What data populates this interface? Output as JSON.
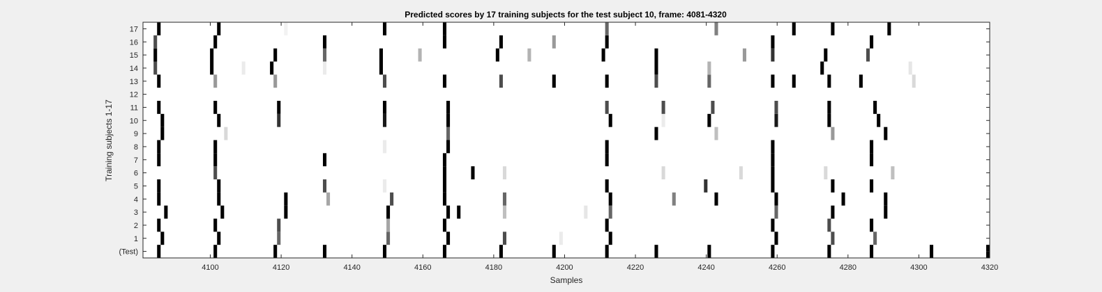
{
  "chart_data": {
    "type": "heatmap",
    "title": "Predicted scores by 17 training subjects for the test subject 10, frame: 4081-4320",
    "xlabel": "Samples",
    "ylabel": "Training subjects 1-17",
    "xlim": [
      4081,
      4320
    ],
    "x_ticks": [
      "4100",
      "4120",
      "4140",
      "4160",
      "4180",
      "4200",
      "4220",
      "4240",
      "4260",
      "4280",
      "4300",
      "4320"
    ],
    "y_tick_labels": [
      "(Test)",
      "1",
      "2",
      "3",
      "4",
      "5",
      "6",
      "7",
      "8",
      "9",
      "10",
      "11",
      "12",
      "13",
      "14",
      "15",
      "16",
      "17"
    ],
    "colormap": "gray (0 = white, 1 = black)",
    "background_color": "#ffffff",
    "figure_color": "#f0f0f0",
    "rows": [
      {
        "label": "(Test)",
        "marks": [
          [
            4085,
            1
          ],
          [
            4101,
            1
          ],
          [
            4118,
            1
          ],
          [
            4132,
            1
          ],
          [
            4149,
            1
          ],
          [
            4166,
            1
          ],
          [
            4182,
            1
          ],
          [
            4197,
            1
          ],
          [
            4212,
            1
          ],
          [
            4226,
            1
          ],
          [
            4241,
            1
          ],
          [
            4259,
            1
          ],
          [
            4275,
            1
          ],
          [
            4287,
            1
          ],
          [
            4304,
            1
          ],
          [
            4320,
            1
          ]
        ]
      },
      {
        "label": "1",
        "marks": [
          [
            4086,
            1
          ],
          [
            4102,
            1
          ],
          [
            4119,
            0.6
          ],
          [
            4150,
            0.6
          ],
          [
            4167,
            1
          ],
          [
            4183,
            0.7
          ],
          [
            4199,
            0.08
          ],
          [
            4213,
            1
          ],
          [
            4260,
            1
          ],
          [
            4276,
            0.7
          ],
          [
            4288,
            0.6
          ]
        ]
      },
      {
        "label": "2",
        "marks": [
          [
            4085,
            1
          ],
          [
            4101,
            1
          ],
          [
            4119,
            0.7
          ],
          [
            4150,
            0.35
          ],
          [
            4166,
            1
          ],
          [
            4212,
            1
          ],
          [
            4259,
            1
          ],
          [
            4275,
            0.7
          ],
          [
            4287,
            1
          ]
        ]
      },
      {
        "label": "3",
        "marks": [
          [
            4087,
            1
          ],
          [
            4103,
            1
          ],
          [
            4121,
            1
          ],
          [
            4150,
            1
          ],
          [
            4167,
            1
          ],
          [
            4170,
            1
          ],
          [
            4183,
            0.25
          ],
          [
            4206,
            0.1
          ],
          [
            4213,
            0.6
          ],
          [
            4260,
            0.6
          ],
          [
            4276,
            1
          ],
          [
            4291,
            1
          ]
        ]
      },
      {
        "label": "4",
        "marks": [
          [
            4085,
            1
          ],
          [
            4102,
            1
          ],
          [
            4121,
            1
          ],
          [
            4133,
            0.35
          ],
          [
            4151,
            0.7
          ],
          [
            4166,
            1
          ],
          [
            4183,
            0.6
          ],
          [
            4213,
            1
          ],
          [
            4231,
            0.5
          ],
          [
            4243,
            1
          ],
          [
            4260,
            1
          ],
          [
            4279,
            1
          ],
          [
            4291,
            1
          ]
        ]
      },
      {
        "label": "5",
        "marks": [
          [
            4085,
            1
          ],
          [
            4102,
            1
          ],
          [
            4132,
            0.7
          ],
          [
            4149,
            0.08
          ],
          [
            4166,
            1
          ],
          [
            4212,
            1
          ],
          [
            4240,
            0.8
          ],
          [
            4259,
            1
          ],
          [
            4276,
            1
          ],
          [
            4287,
            1
          ]
        ]
      },
      {
        "label": "6",
        "marks": [
          [
            4101,
            0.7
          ],
          [
            4166,
            1
          ],
          [
            4174,
            1
          ],
          [
            4183,
            0.15
          ],
          [
            4228,
            0.15
          ],
          [
            4250,
            0.15
          ],
          [
            4259,
            1
          ],
          [
            4274,
            0.15
          ],
          [
            4293,
            0.25
          ]
        ]
      },
      {
        "label": "7",
        "marks": [
          [
            4085,
            1
          ],
          [
            4101,
            1
          ],
          [
            4132,
            1
          ],
          [
            4166,
            1
          ],
          [
            4212,
            1
          ],
          [
            4259,
            1
          ],
          [
            4287,
            1
          ]
        ]
      },
      {
        "label": "8",
        "marks": [
          [
            4085,
            1
          ],
          [
            4101,
            1
          ],
          [
            4149,
            0.08
          ],
          [
            4167,
            1
          ],
          [
            4212,
            1
          ],
          [
            4259,
            1
          ],
          [
            4287,
            1
          ]
        ]
      },
      {
        "label": "9",
        "marks": [
          [
            4086,
            1
          ],
          [
            4104,
            0.15
          ],
          [
            4167,
            0.6
          ],
          [
            4226,
            1
          ],
          [
            4243,
            0.25
          ],
          [
            4276,
            0.4
          ],
          [
            4291,
            1
          ]
        ]
      },
      {
        "label": "10",
        "marks": [
          [
            4086,
            1
          ],
          [
            4102,
            1
          ],
          [
            4119,
            0.8
          ],
          [
            4149,
            0.9
          ],
          [
            4167,
            1
          ],
          [
            4213,
            1
          ],
          [
            4228,
            0.08
          ],
          [
            4241,
            1
          ],
          [
            4260,
            0.9
          ],
          [
            4275,
            1
          ],
          [
            4289,
            1
          ]
        ]
      },
      {
        "label": "11",
        "marks": [
          [
            4085,
            1
          ],
          [
            4101,
            1
          ],
          [
            4119,
            1
          ],
          [
            4149,
            1
          ],
          [
            4167,
            1
          ],
          [
            4212,
            0.7
          ],
          [
            4228,
            0.7
          ],
          [
            4242,
            0.7
          ],
          [
            4260,
            0.7
          ],
          [
            4275,
            1
          ],
          [
            4288,
            1
          ]
        ]
      },
      {
        "label": "12",
        "marks": []
      },
      {
        "label": "13",
        "marks": [
          [
            4085,
            1
          ],
          [
            4101,
            0.4
          ],
          [
            4118,
            0.4
          ],
          [
            4149,
            0.7
          ],
          [
            4166,
            1
          ],
          [
            4182,
            0.7
          ],
          [
            4197,
            1
          ],
          [
            4212,
            1
          ],
          [
            4226,
            0.7
          ],
          [
            4241,
            0.6
          ],
          [
            4259,
            1
          ],
          [
            4265,
            1
          ],
          [
            4275,
            1
          ],
          [
            4284,
            1
          ],
          [
            4299,
            0.15
          ]
        ]
      },
      {
        "label": "14",
        "marks": [
          [
            4084,
            0.7
          ],
          [
            4100,
            1
          ],
          [
            4109,
            0.08
          ],
          [
            4117,
            1
          ],
          [
            4132,
            0.08
          ],
          [
            4148,
            1
          ],
          [
            4226,
            1
          ],
          [
            4241,
            0.3
          ],
          [
            4273,
            1
          ],
          [
            4298,
            0.1
          ]
        ]
      },
      {
        "label": "15",
        "marks": [
          [
            4084,
            1
          ],
          [
            4100,
            1
          ],
          [
            4118,
            1
          ],
          [
            4132,
            0.6
          ],
          [
            4148,
            1
          ],
          [
            4159,
            0.3
          ],
          [
            4181,
            1
          ],
          [
            4190,
            0.3
          ],
          [
            4211,
            1
          ],
          [
            4226,
            1
          ],
          [
            4251,
            0.4
          ],
          [
            4259,
            0.8
          ],
          [
            4274,
            1
          ],
          [
            4286,
            0.7
          ]
        ]
      },
      {
        "label": "16",
        "marks": [
          [
            4084,
            0.7
          ],
          [
            4101,
            1
          ],
          [
            4132,
            1
          ],
          [
            4166,
            1
          ],
          [
            4182,
            1
          ],
          [
            4197,
            0.4
          ],
          [
            4212,
            1
          ],
          [
            4259,
            1
          ],
          [
            4287,
            1
          ]
        ]
      },
      {
        "label": "17",
        "marks": [
          [
            4085,
            1
          ],
          [
            4102,
            1
          ],
          [
            4121,
            0.05
          ],
          [
            4149,
            1
          ],
          [
            4166,
            1
          ],
          [
            4212,
            0.6
          ],
          [
            4243,
            0.5
          ],
          [
            4265,
            1
          ],
          [
            4276,
            1
          ],
          [
            4292,
            1
          ]
        ]
      }
    ]
  }
}
